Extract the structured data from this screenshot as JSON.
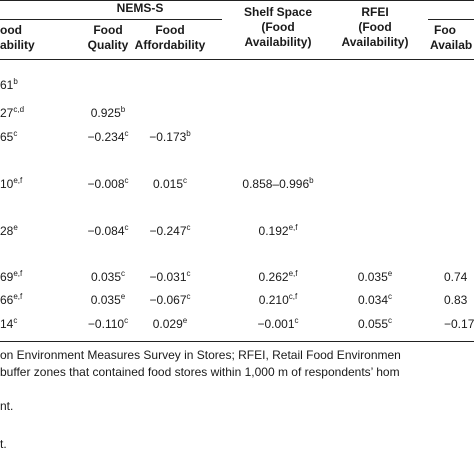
{
  "header": {
    "nems_group": "NEMS-S",
    "col_food_avail_partial_1": "ood",
    "col_food_avail_partial_2": "ability",
    "col_food_quality_1": "Food",
    "col_food_quality_2": "Quality",
    "col_food_afford_1": "Food",
    "col_food_afford_2": "Affordability",
    "col_shelf_1": "Shelf Space",
    "col_shelf_2": "(Food",
    "col_shelf_3": "Availability)",
    "col_rfei_1": "RFEI",
    "col_rfei_2": "(Food",
    "col_rfei_3": "Availability)",
    "col_last_1": "Foo",
    "col_last_2": "Availab"
  },
  "rows": [
    {
      "c1": "61",
      "c1s": "b",
      "c2": "",
      "c2s": "",
      "c3": "",
      "c3s": "",
      "c4": "",
      "c4s": "",
      "c5": "",
      "c5s": "",
      "c6": ""
    },
    {
      "c1": "27",
      "c1s": "c,d",
      "c2": "0.925",
      "c2s": "b",
      "c3": "",
      "c3s": "",
      "c4": "",
      "c4s": "",
      "c5": "",
      "c5s": "",
      "c6": ""
    },
    {
      "c1": "65",
      "c1s": "c",
      "c2": "−0.234",
      "c2s": "c",
      "c3": "−0.173",
      "c3s": "b",
      "c4": "",
      "c4s": "",
      "c5": "",
      "c5s": "",
      "c6": ""
    },
    {
      "c1": "10",
      "c1s": "e,f",
      "c2": "−0.008",
      "c2s": "c",
      "c3": "0.015",
      "c3s": "c",
      "c4": "0.858–0.996",
      "c4s": "b",
      "c5": "",
      "c5s": "",
      "c6": ""
    },
    {
      "c1": "28",
      "c1s": "e",
      "c2": "−0.084",
      "c2s": "c",
      "c3": "−0.247",
      "c3s": "c",
      "c4": "0.192",
      "c4s": "e,f",
      "c5": "",
      "c5s": "",
      "c6": ""
    },
    {
      "c1": "69",
      "c1s": "e,f",
      "c2": "0.035",
      "c2s": "c",
      "c3": "−0.031",
      "c3s": "c",
      "c4": "0.262",
      "c4s": "e,f",
      "c5": "0.035",
      "c5s": "e",
      "c6": "0.74"
    },
    {
      "c1": "66",
      "c1s": "e,f",
      "c2": "0.035",
      "c2s": "e",
      "c3": "−0.067",
      "c3s": "c",
      "c4": "0.210",
      "c4s": "c,f",
      "c5": "0.034",
      "c5s": "c",
      "c6": "0.83"
    },
    {
      "c1": "14",
      "c1s": "c",
      "c2": "−0.110",
      "c2s": "c",
      "c3": "0.029",
      "c3s": "e",
      "c4": "−0.001",
      "c4s": "c",
      "c5": "0.055",
      "c5s": "c",
      "c6": "−0.17"
    }
  ],
  "footnotes": {
    "line1": "on Environment Measures Survey in Stores; RFEI, Retail Food Environmen",
    "line2": "buffer zones that contained food stores within 1,000 m of respondents’ hom",
    "line3": "nt.",
    "line4": "t."
  }
}
